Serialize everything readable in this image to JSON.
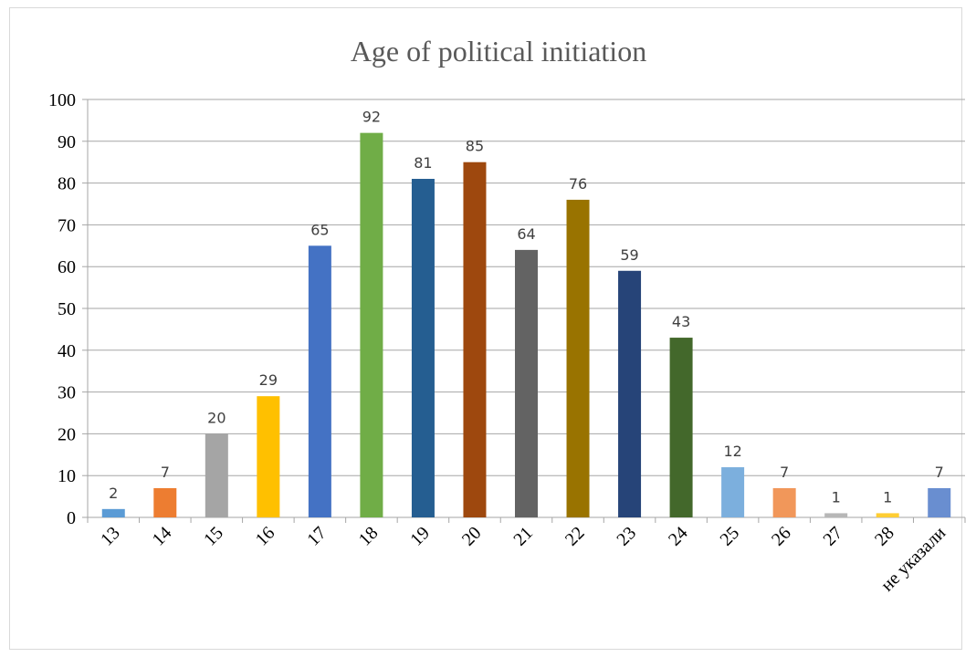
{
  "chart_data": {
    "type": "bar",
    "title": "Age of political initiation",
    "xlabel": "",
    "ylabel": "",
    "categories": [
      "13",
      "14",
      "15",
      "16",
      "17",
      "18",
      "19",
      "20",
      "21",
      "22",
      "23",
      "24",
      "25",
      "26",
      "27",
      "28",
      "не указали"
    ],
    "values": [
      2,
      7,
      20,
      29,
      65,
      92,
      81,
      85,
      64,
      76,
      59,
      43,
      12,
      7,
      1,
      1,
      7
    ],
    "data_labels": [
      "2",
      "7",
      "20",
      "29",
      "65",
      "92",
      "81",
      "85",
      "64",
      "76",
      "59",
      "43",
      "12",
      "7",
      "1",
      "1",
      "7"
    ],
    "colors": [
      "#5b9bd5",
      "#ed7d31",
      "#a5a5a5",
      "#ffc000",
      "#4472c4",
      "#70ad47",
      "#255e91",
      "#9e480e",
      "#636363",
      "#997300",
      "#264478",
      "#43682b",
      "#7cafdd",
      "#f1975a",
      "#b7b7b7",
      "#ffcd33",
      "#698ed0"
    ],
    "ylim": [
      0,
      100
    ],
    "yticks": [
      "0",
      "10",
      "20",
      "30",
      "40",
      "50",
      "60",
      "70",
      "80",
      "90",
      "100"
    ],
    "grid": true,
    "legend": "none"
  }
}
